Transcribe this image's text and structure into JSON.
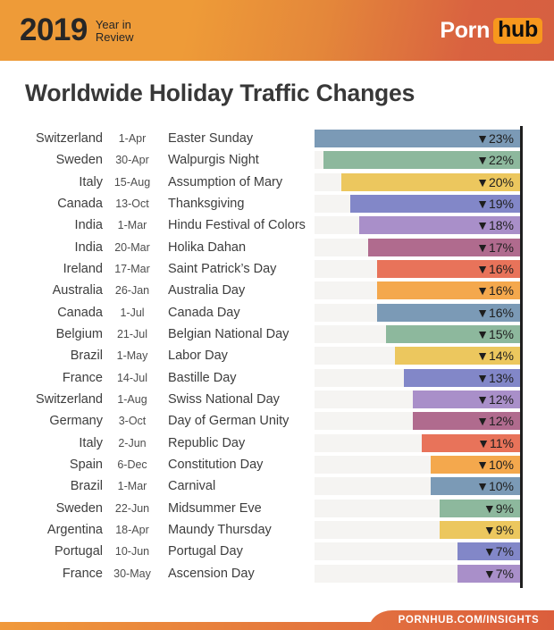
{
  "header": {
    "year": "2019",
    "tagline_line1": "Year in",
    "tagline_line2": "Review",
    "logo": {
      "porn": "Porn",
      "hub": "hub",
      "hub_bg": "#f7981d"
    }
  },
  "title": "Worldwide Holiday Traffic Changes",
  "footer": {
    "link": "PORNHUB.COM/INSIGHTS"
  },
  "chart_data": {
    "type": "bar",
    "orientation": "horizontal",
    "title": "Worldwide Holiday Traffic Changes",
    "value_meaning": "holiday traffic decrease, percent",
    "marker": "▼",
    "xlim": [
      0,
      23
    ],
    "track_color": "#f5f4f2",
    "axis_color": "#1f1f1f",
    "columns": [
      "country",
      "date",
      "holiday",
      "change"
    ],
    "rows": [
      {
        "country": "Switzerland",
        "date": "1-Apr",
        "holiday": "Easter Sunday",
        "change_pct": 23,
        "label": "▼23%",
        "color": "#7b9ab6"
      },
      {
        "country": "Sweden",
        "date": "30-Apr",
        "holiday": "Walpurgis Night",
        "change_pct": 22,
        "label": "▼22%",
        "color": "#8db89d"
      },
      {
        "country": "Italy",
        "date": "15-Aug",
        "holiday": "Assumption of Mary",
        "change_pct": 20,
        "label": "▼20%",
        "color": "#ecc75e"
      },
      {
        "country": "Canada",
        "date": "13-Oct",
        "holiday": "Thanksgiving",
        "change_pct": 19,
        "label": "▼19%",
        "color": "#8287c8"
      },
      {
        "country": "India",
        "date": "1-Mar",
        "holiday": "Hindu Festival of Colors",
        "change_pct": 18,
        "label": "▼18%",
        "color": "#a98fc9"
      },
      {
        "country": "India",
        "date": "20-Mar",
        "holiday": "Holika Dahan",
        "change_pct": 17,
        "label": "▼17%",
        "color": "#b06b8e"
      },
      {
        "country": "Ireland",
        "date": "17-Mar",
        "holiday": "Saint Patrick’s Day",
        "change_pct": 16,
        "label": "▼16%",
        "color": "#e8735a"
      },
      {
        "country": "Australia",
        "date": "26-Jan",
        "holiday": "Australia Day",
        "change_pct": 16,
        "label": "▼16%",
        "color": "#f4a84d"
      },
      {
        "country": "Canada",
        "date": "1-Jul",
        "holiday": "Canada Day",
        "change_pct": 16,
        "label": "▼16%",
        "color": "#7b9ab6"
      },
      {
        "country": "Belgium",
        "date": "21-Jul",
        "holiday": "Belgian National Day",
        "change_pct": 15,
        "label": "▼15%",
        "color": "#8db89d"
      },
      {
        "country": "Brazil",
        "date": "1-May",
        "holiday": "Labor Day",
        "change_pct": 14,
        "label": "▼14%",
        "color": "#ecc75e"
      },
      {
        "country": "France",
        "date": "14-Jul",
        "holiday": "Bastille Day",
        "change_pct": 13,
        "label": "▼13%",
        "color": "#8287c8"
      },
      {
        "country": "Switzerland",
        "date": "1-Aug",
        "holiday": "Swiss National Day",
        "change_pct": 12,
        "label": "▼12%",
        "color": "#a98fc9"
      },
      {
        "country": "Germany",
        "date": "3-Oct",
        "holiday": "Day of German Unity",
        "change_pct": 12,
        "label": "▼12%",
        "color": "#b06b8e"
      },
      {
        "country": "Italy",
        "date": "2-Jun",
        "holiday": "Republic Day",
        "change_pct": 11,
        "label": "▼11%",
        "color": "#e8735a"
      },
      {
        "country": "Spain",
        "date": "6-Dec",
        "holiday": "Constitution Day",
        "change_pct": 10,
        "label": "▼10%",
        "color": "#f4a84d"
      },
      {
        "country": "Brazil",
        "date": "1-Mar",
        "holiday": "Carnival",
        "change_pct": 10,
        "label": "▼10%",
        "color": "#7b9ab6"
      },
      {
        "country": "Sweden",
        "date": "22-Jun",
        "holiday": "Midsummer Eve",
        "change_pct": 9,
        "label": "▼9%",
        "color": "#8db89d"
      },
      {
        "country": "Argentina",
        "date": "18-Apr",
        "holiday": "Maundy Thursday",
        "change_pct": 9,
        "label": "▼9%",
        "color": "#ecc75e"
      },
      {
        "country": "Portugal",
        "date": "10-Jun",
        "holiday": "Portugal Day",
        "change_pct": 7,
        "label": "▼7%",
        "color": "#8287c8"
      },
      {
        "country": "France",
        "date": "30-May",
        "holiday": "Ascension Day",
        "change_pct": 7,
        "label": "▼7%",
        "color": "#a98fc9"
      }
    ]
  }
}
